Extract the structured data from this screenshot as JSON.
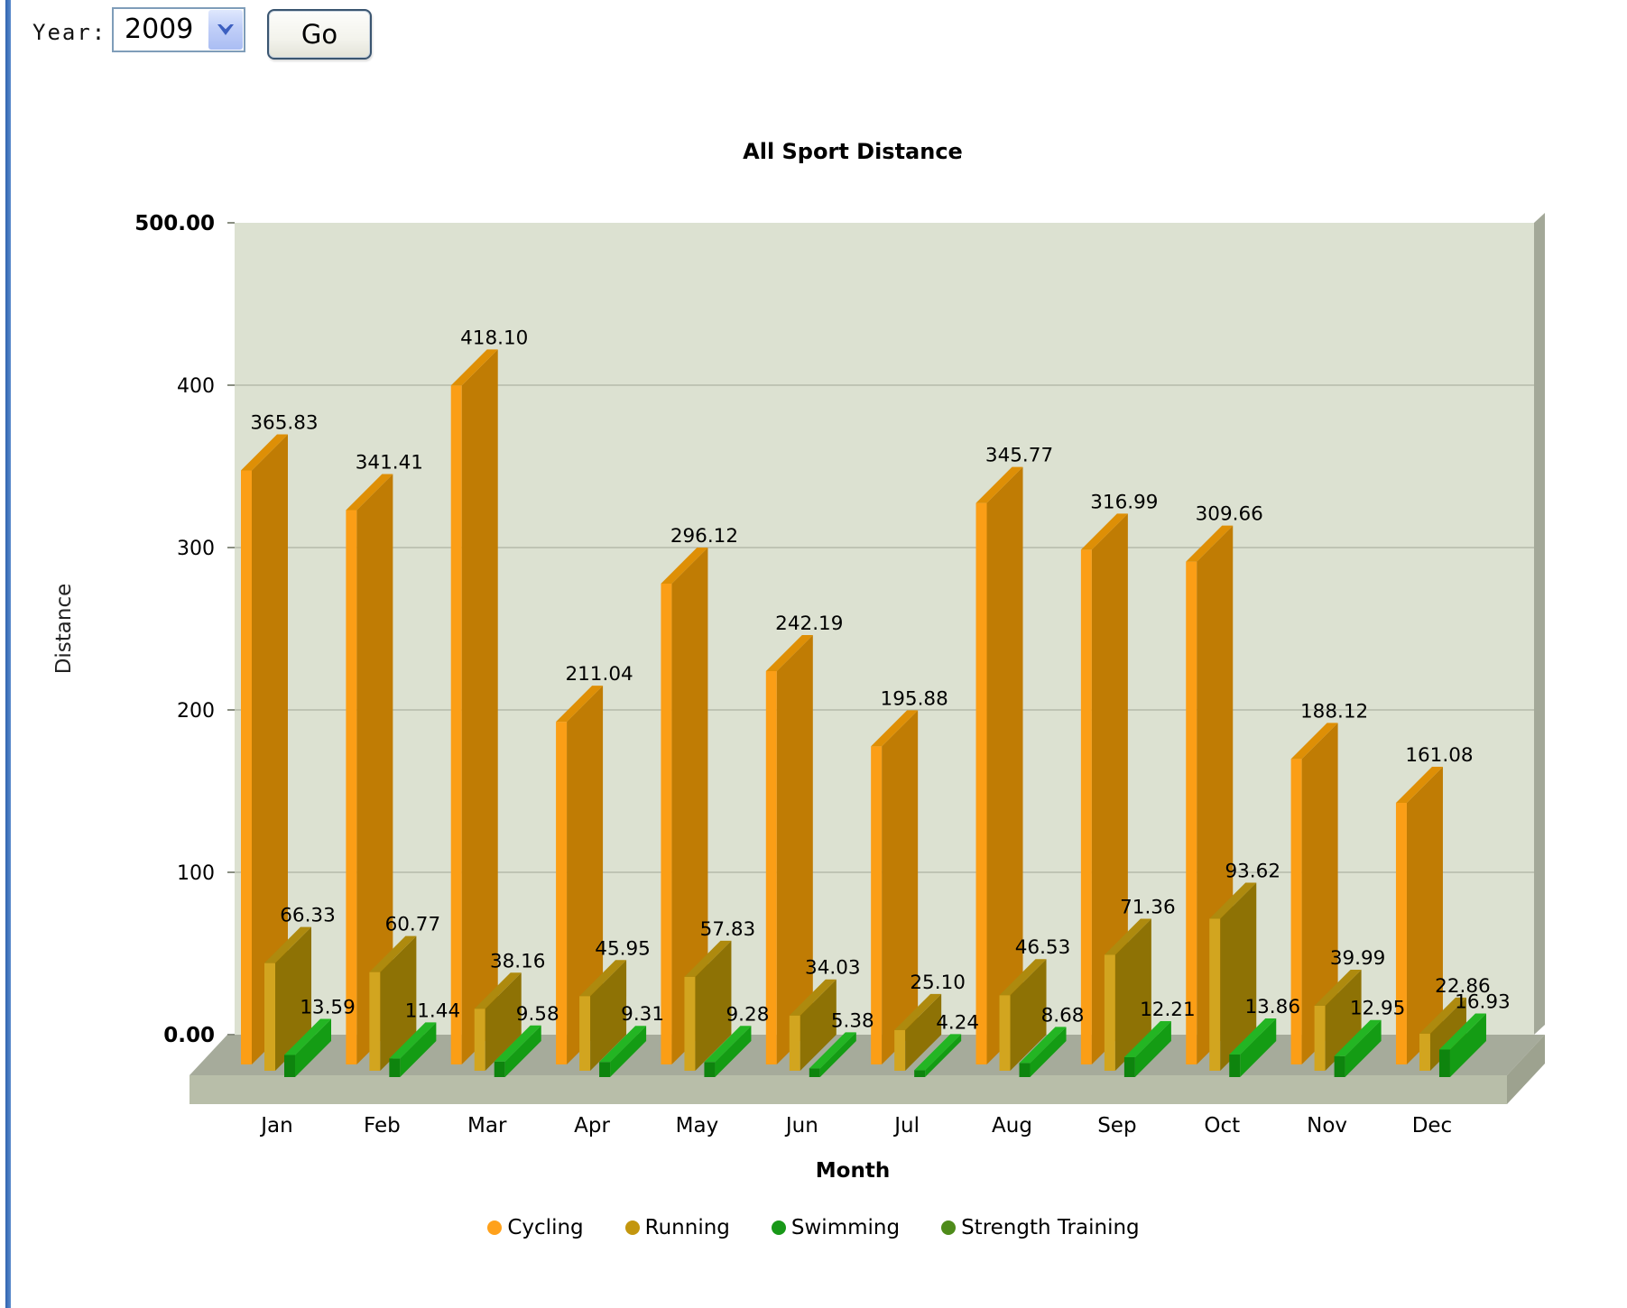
{
  "page": {
    "left_accent_color": "#4273BE"
  },
  "toolbar": {
    "year_label": "Year:",
    "year_value": "2009",
    "go_label": "Go"
  },
  "chart_data": {
    "type": "bar",
    "projection": "3d-oblique",
    "title": "All Sport Distance",
    "xlabel": "Month",
    "ylabel": "Distance",
    "ylim": [
      0,
      500
    ],
    "grid": true,
    "legend_position": "bottom",
    "y_ticks": [
      {
        "label": "500.00",
        "value": 500,
        "bold": true
      },
      {
        "label": "400",
        "value": 400,
        "bold": false
      },
      {
        "label": "300",
        "value": 300,
        "bold": false
      },
      {
        "label": "200",
        "value": 200,
        "bold": false
      },
      {
        "label": "100",
        "value": 100,
        "bold": false
      },
      {
        "label": "0.00",
        "value": 0,
        "bold": true
      }
    ],
    "categories": [
      "Jan",
      "Feb",
      "Mar",
      "Apr",
      "May",
      "Jun",
      "Jul",
      "Aug",
      "Sep",
      "Oct",
      "Nov",
      "Dec"
    ],
    "series": [
      {
        "name": "Cycling",
        "legend_color": "#FFA11B",
        "face_color": "#FB9E16",
        "side_color": "#C07C04",
        "top_color": "#DE8F06",
        "values": [
          365.83,
          341.41,
          418.1,
          211.04,
          296.12,
          242.19,
          195.88,
          345.77,
          316.99,
          309.66,
          188.12,
          161.08
        ]
      },
      {
        "name": "Running",
        "legend_color": "#C3960E",
        "face_color": "#D2A51F",
        "side_color": "#8E7205",
        "top_color": "#AE8A0E",
        "values": [
          66.33,
          60.77,
          38.16,
          45.95,
          57.83,
          34.03,
          25.1,
          46.53,
          71.36,
          93.62,
          39.99,
          22.86
        ]
      },
      {
        "name": "Swimming",
        "legend_color": "#189818",
        "face_color": "#0E840E",
        "side_color": "#149C14",
        "top_color": "#23B523",
        "values": [
          13.59,
          11.44,
          9.58,
          9.31,
          9.28,
          5.38,
          4.24,
          8.68,
          12.21,
          13.86,
          12.95,
          16.93
        ]
      },
      {
        "name": "Strength Training",
        "legend_color": "#4E8B1A",
        "face_color": "#3E7E14",
        "side_color": "#356D10",
        "top_color": "#4E9A1C",
        "values": [
          0,
          0,
          0,
          0,
          0,
          0,
          0,
          0,
          0,
          0,
          0,
          0
        ]
      }
    ],
    "colors": {
      "wall_bg": "#DCE1D1",
      "gridline": "#B5BAAB",
      "wall_edge": "#A3A898",
      "floor_top": "#A6AB9B",
      "floor_front": "#B8BEA9",
      "floor_end": "#9DA28F"
    }
  }
}
